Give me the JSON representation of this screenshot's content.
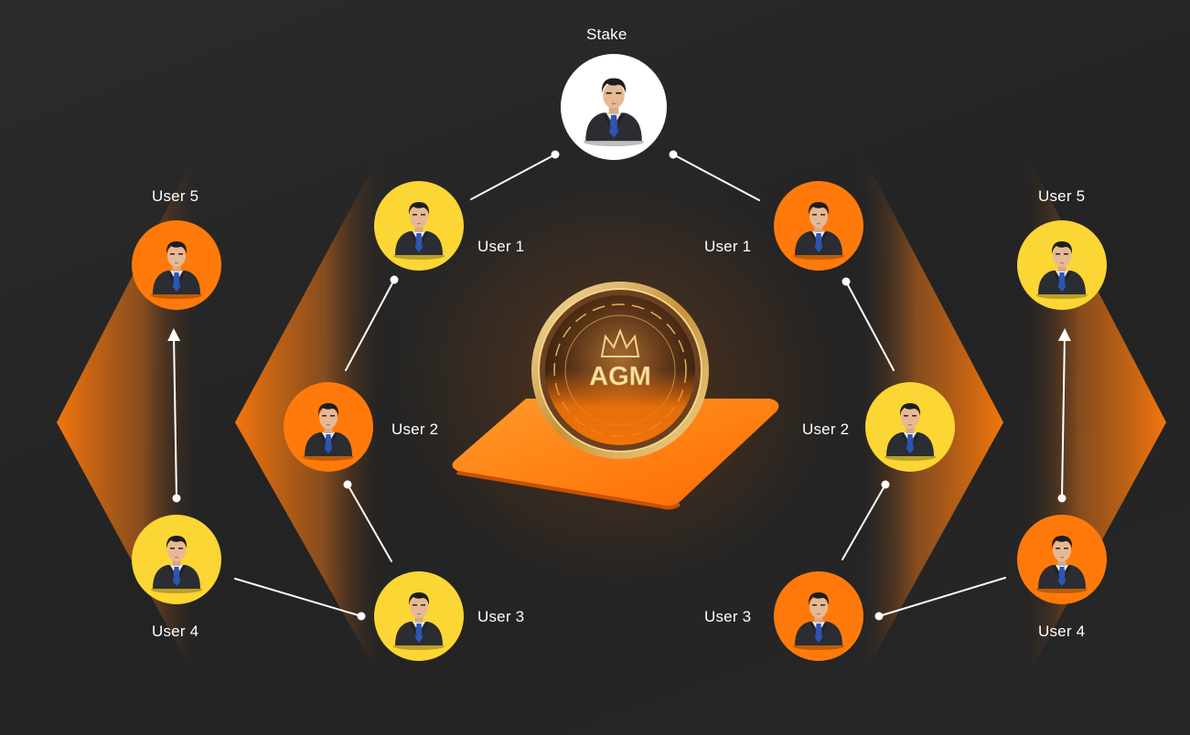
{
  "colors": {
    "background": "#262626",
    "orange": "#ff7a0a",
    "yellow": "#fbd634",
    "white": "#ffffff",
    "gold": "#d9a441",
    "platform": "#ff7a0a"
  },
  "stake": {
    "label": "Stake",
    "color": "white"
  },
  "coin": {
    "text": "AGM",
    "icon": "crown-icon"
  },
  "left": {
    "user1": {
      "label": "User 1",
      "color": "yellow"
    },
    "user2": {
      "label": "User 2",
      "color": "orange"
    },
    "user3": {
      "label": "User 3",
      "color": "yellow"
    },
    "user4": {
      "label": "User 4",
      "color": "yellow"
    },
    "user5": {
      "label": "User 5",
      "color": "orange"
    }
  },
  "right": {
    "user1": {
      "label": "User 1",
      "color": "orange"
    },
    "user2": {
      "label": "User 2",
      "color": "yellow"
    },
    "user3": {
      "label": "User 3",
      "color": "orange"
    },
    "user4": {
      "label": "User 4",
      "color": "orange"
    },
    "user5": {
      "label": "User 5",
      "color": "yellow"
    }
  }
}
